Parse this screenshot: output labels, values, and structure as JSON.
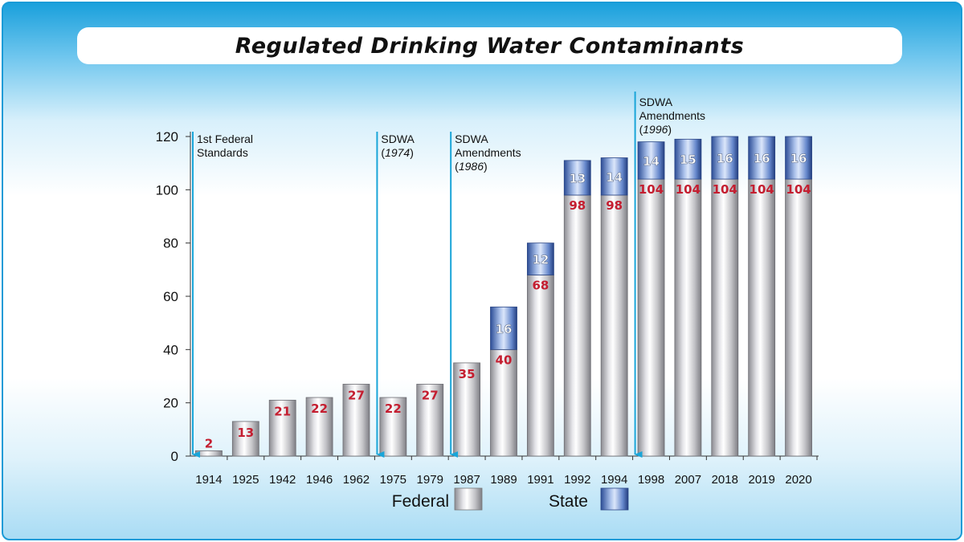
{
  "title": "Regulated Drinking Water Contaminants",
  "chart_data": {
    "type": "bar",
    "stacked": true,
    "title": "Regulated Drinking Water Contaminants",
    "xlabel": "",
    "ylabel": "",
    "ylim": [
      0,
      120
    ],
    "yticks": [
      0,
      20,
      40,
      60,
      80,
      100,
      120
    ],
    "grid": false,
    "legend_position": "bottom",
    "categories": [
      "1914",
      "1925",
      "1942",
      "1946",
      "1962",
      "1975",
      "1979",
      "1987",
      "1989",
      "1991",
      "1992",
      "1994",
      "1998",
      "2007",
      "2018",
      "2019",
      "2020"
    ],
    "series": [
      {
        "name": "Federal",
        "color": "#b8b8bc",
        "values": [
          2,
          13,
          21,
          22,
          27,
          22,
          27,
          35,
          40,
          68,
          98,
          98,
          104,
          104,
          104,
          104,
          104
        ]
      },
      {
        "name": "State",
        "color": "#4a6fb5",
        "values": [
          0,
          0,
          0,
          0,
          0,
          0,
          0,
          0,
          16,
          12,
          13,
          14,
          14,
          15,
          16,
          16,
          16
        ]
      }
    ],
    "annotations": [
      {
        "category": "1914",
        "lines": [
          "1st Federal",
          "Standards"
        ],
        "italic_line": -1
      },
      {
        "category": "1975",
        "lines": [
          "SDWA",
          "(1974)"
        ],
        "italic_line": 1
      },
      {
        "category": "1987",
        "lines": [
          "SDWA",
          "Amendments",
          "(1986)"
        ],
        "italic_line": 2
      },
      {
        "category": "1998",
        "lines": [
          "SDWA",
          "Amendments",
          "(1996)"
        ],
        "italic_line": 2
      }
    ],
    "arrow_color": "#1aa5d8"
  }
}
